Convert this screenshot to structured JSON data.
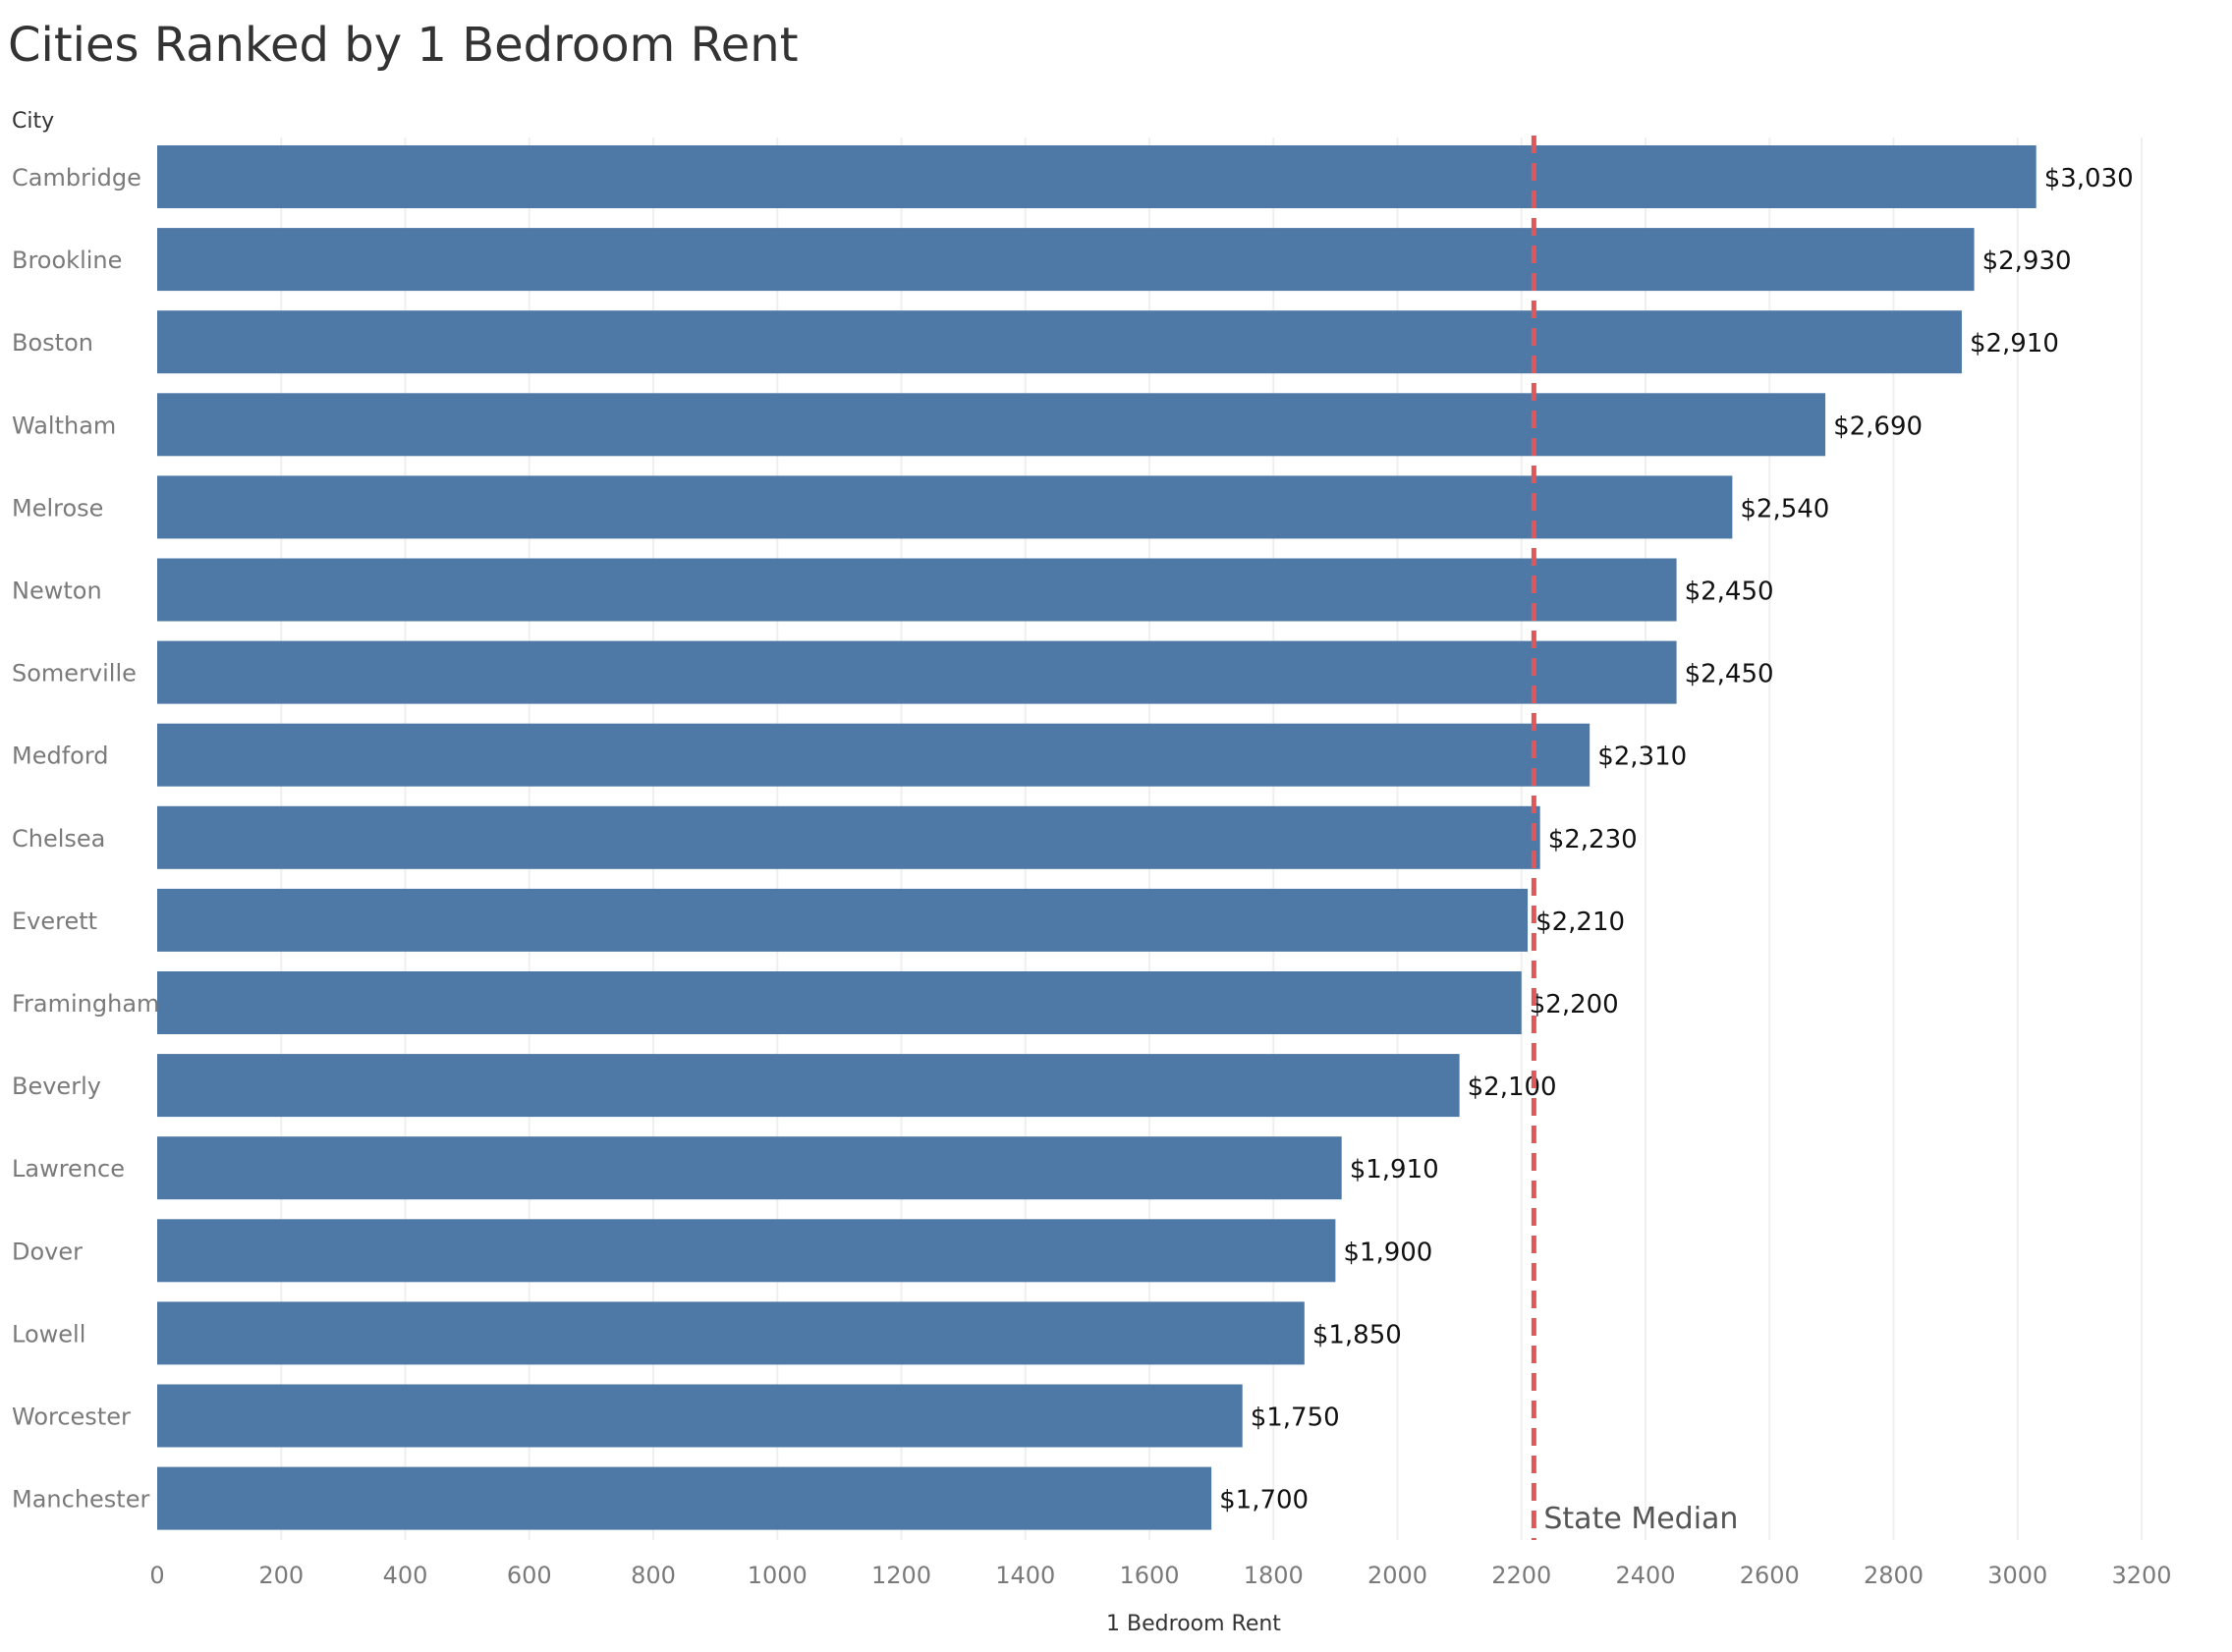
{
  "title": "Cities Ranked by 1 Bedroom Rent",
  "colors": {
    "bar": "#4e78a6",
    "reference_line": "#e05759"
  },
  "chart_data": {
    "type": "bar",
    "orientation": "horizontal",
    "row_header": "City",
    "xlabel": "1 Bedroom Rent",
    "xlim": [
      0,
      3200
    ],
    "xticks": [
      0,
      200,
      400,
      600,
      800,
      1000,
      1200,
      1400,
      1600,
      1800,
      2000,
      2200,
      2400,
      2600,
      2800,
      3000,
      3200
    ],
    "grid": "vertical",
    "categories": [
      "Cambridge",
      "Brookline",
      "Boston",
      "Waltham",
      "Melrose",
      "Newton",
      "Somerville",
      "Medford",
      "Chelsea",
      "Everett",
      "Framingham",
      "Beverly",
      "Lawrence",
      "Dover",
      "Lowell",
      "Worcester",
      "Manchester"
    ],
    "values": [
      3030,
      2930,
      2910,
      2690,
      2540,
      2450,
      2450,
      2310,
      2230,
      2210,
      2200,
      2100,
      1910,
      1900,
      1850,
      1750,
      1700
    ],
    "value_labels": [
      "$3,030",
      "$2,930",
      "$2,910",
      "$2,690",
      "$2,540",
      "$2,450",
      "$2,450",
      "$2,310",
      "$2,230",
      "$2,210",
      "$2,200",
      "$2,100",
      "$1,910",
      "$1,900",
      "$1,850",
      "$1,750",
      "$1,700"
    ],
    "reference_line": {
      "label": "State Median",
      "value": 2220,
      "style": "dashed"
    }
  }
}
